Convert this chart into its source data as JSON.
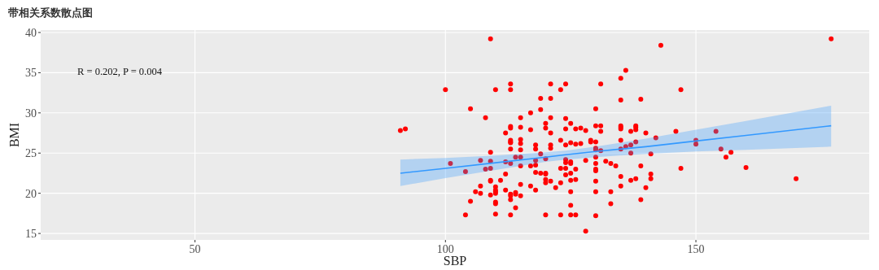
{
  "chart_data": {
    "type": "scatter",
    "title": "带相关系数散点图",
    "xlabel": "SBP",
    "ylabel": "BMI",
    "xlim": [
      19.2,
      184.6
    ],
    "ylim": [
      14.2,
      40.3
    ],
    "xticks": [
      50,
      100,
      150
    ],
    "yticks": [
      15,
      20,
      25,
      30,
      35,
      40
    ],
    "grid": true,
    "annotations": [
      "R = 0.202, P = 0.004"
    ],
    "series": [
      {
        "type": "scatter",
        "color": "#ff0000",
        "marker": "circle",
        "x": [
          109,
          100,
          110,
          113,
          113,
          121,
          105,
          119,
          121,
          117,
          119,
          108,
          115,
          121,
          91,
          92,
          113,
          113,
          115,
          120,
          120,
          117,
          112,
          121,
          113,
          113,
          113,
          115,
          115,
          118,
          118,
          113,
          115,
          109,
          121,
          121,
          119,
          114,
          115,
          120,
          118,
          107,
          109,
          112,
          101,
          113,
          115,
          117,
          118,
          108,
          109,
          104,
          118,
          119,
          120,
          120,
          112,
          109,
          109,
          111,
          120,
          120,
          121,
          107,
          110,
          115,
          117,
          106,
          107,
          110,
          110,
          110,
          112,
          109,
          113,
          113,
          114,
          114,
          115,
          118,
          105,
          110,
          110,
          113,
          114,
          104,
          110,
          113,
          120,
          123,
          123,
          123,
          123,
          124,
          124,
          124,
          124,
          124,
          124,
          124,
          124,
          122,
          123,
          125,
          125,
          125,
          125,
          125,
          125,
          125,
          125,
          125,
          126,
          126,
          126,
          126,
          126,
          127,
          127,
          128,
          128,
          128,
          129,
          129,
          130,
          130,
          130,
          130,
          130,
          130,
          130,
          130,
          130,
          130,
          130,
          130,
          131,
          131,
          131,
          131,
          132,
          133,
          133,
          133,
          134,
          135,
          135,
          135,
          135,
          135,
          135,
          135,
          135,
          135,
          136,
          136,
          137,
          137,
          137,
          137,
          138,
          138,
          138,
          138,
          138,
          139,
          139,
          139,
          140,
          140,
          141,
          141,
          141,
          142,
          143,
          146,
          147,
          147,
          150,
          150,
          154,
          155,
          156,
          157,
          160,
          170,
          177
        ],
        "values": [
          39.2,
          32.9,
          32.9,
          32.9,
          33.6,
          33.6,
          30.5,
          31.8,
          31.8,
          30.0,
          30.4,
          29.4,
          29.4,
          29.4,
          27.8,
          28.0,
          28.3,
          28.1,
          28.2,
          28.7,
          28.1,
          27.9,
          27.5,
          27.5,
          26.6,
          26.4,
          26.3,
          26.7,
          26.2,
          26.0,
          25.5,
          25.5,
          25.4,
          25.1,
          26.0,
          25.6,
          24.9,
          24.5,
          24.5,
          24.3,
          24.1,
          24.1,
          24.0,
          23.9,
          23.7,
          23.7,
          23.4,
          23.4,
          23.5,
          23.0,
          23.1,
          22.7,
          22.6,
          22.5,
          22.5,
          22.4,
          22.4,
          21.6,
          21.5,
          21.6,
          21.7,
          21.3,
          21.5,
          20.9,
          20.8,
          21.1,
          20.9,
          20.2,
          20.0,
          20.4,
          20.2,
          20.0,
          20.4,
          19.8,
          19.9,
          19.7,
          20.1,
          19.9,
          19.7,
          20.4,
          19.0,
          18.9,
          18.7,
          19.2,
          18.2,
          17.3,
          17.4,
          17.3,
          17.3,
          32.9,
          23.1,
          21.3,
          17.3,
          33.6,
          29.3,
          28.0,
          26.0,
          24.2,
          23.8,
          23.1,
          22.3,
          20.7,
          26.6,
          28.7,
          26.3,
          23.9,
          23.7,
          22.5,
          21.6,
          20.2,
          18.5,
          17.3,
          28.0,
          26.1,
          23.0,
          21.7,
          17.3,
          28.1,
          26.2,
          27.8,
          24.1,
          15.3,
          26.6,
          26.4,
          30.5,
          28.4,
          26.4,
          25.6,
          25.4,
          24.5,
          23.7,
          23.0,
          22.8,
          21.5,
          20.2,
          17.2,
          33.6,
          28.4,
          27.7,
          25.3,
          24.0,
          23.7,
          20.2,
          18.7,
          23.4,
          34.3,
          31.6,
          28.4,
          28.2,
          28.0,
          26.6,
          25.5,
          22.1,
          20.9,
          35.3,
          25.8,
          27.7,
          26.0,
          25.0,
          21.6,
          28.4,
          28.2,
          27.9,
          26.4,
          21.8,
          31.7,
          23.4,
          19.2,
          27.5,
          20.7,
          24.9,
          22.4,
          21.8,
          26.9,
          38.4,
          27.7,
          32.9,
          23.1,
          26.6,
          26.1,
          27.7,
          25.5,
          24.5,
          25.1,
          23.2,
          21.8,
          39.2
        ]
      },
      {
        "type": "line",
        "color": "#3399ff",
        "x": [
          91,
          100,
          110,
          120,
          124,
          130,
          140,
          150,
          160,
          177
        ],
        "values": [
          22.5,
          23.1,
          23.8,
          24.5,
          24.8,
          25.2,
          25.8,
          26.5,
          27.2,
          28.4
        ],
        "lower": [
          20.9,
          21.9,
          22.9,
          23.9,
          24.2,
          24.5,
          24.9,
          25.2,
          25.4,
          25.8
        ],
        "upper": [
          24.2,
          24.4,
          24.7,
          25.1,
          25.3,
          25.8,
          26.8,
          27.9,
          29.0,
          30.9
        ]
      }
    ]
  }
}
